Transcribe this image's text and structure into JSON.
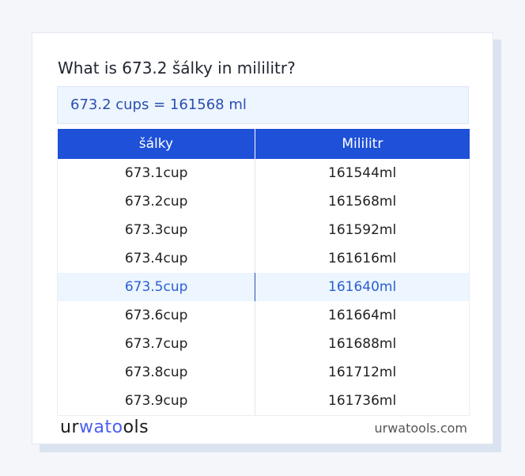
{
  "title": "What is 673.2 šálky in mililitr?",
  "result": "673.2 cups = 161568 ml",
  "table": {
    "headers": [
      "šálky",
      "Mililitr"
    ],
    "rows": [
      [
        "673.1cup",
        "161544ml"
      ],
      [
        "673.2cup",
        "161568ml"
      ],
      [
        "673.3cup",
        "161592ml"
      ],
      [
        "673.4cup",
        "161616ml"
      ],
      [
        "673.5cup",
        "161640ml"
      ],
      [
        "673.6cup",
        "161664ml"
      ],
      [
        "673.7cup",
        "161688ml"
      ],
      [
        "673.8cup",
        "161712ml"
      ],
      [
        "673.9cup",
        "161736ml"
      ]
    ],
    "highlighted_row": 4
  },
  "footer": {
    "logo_a": "ur",
    "logo_b": "wato",
    "logo_c": "ols",
    "site": "urwatools.com"
  },
  "colors": {
    "accent": "#1e50d8",
    "highlight_bg": "#edf5ff"
  }
}
